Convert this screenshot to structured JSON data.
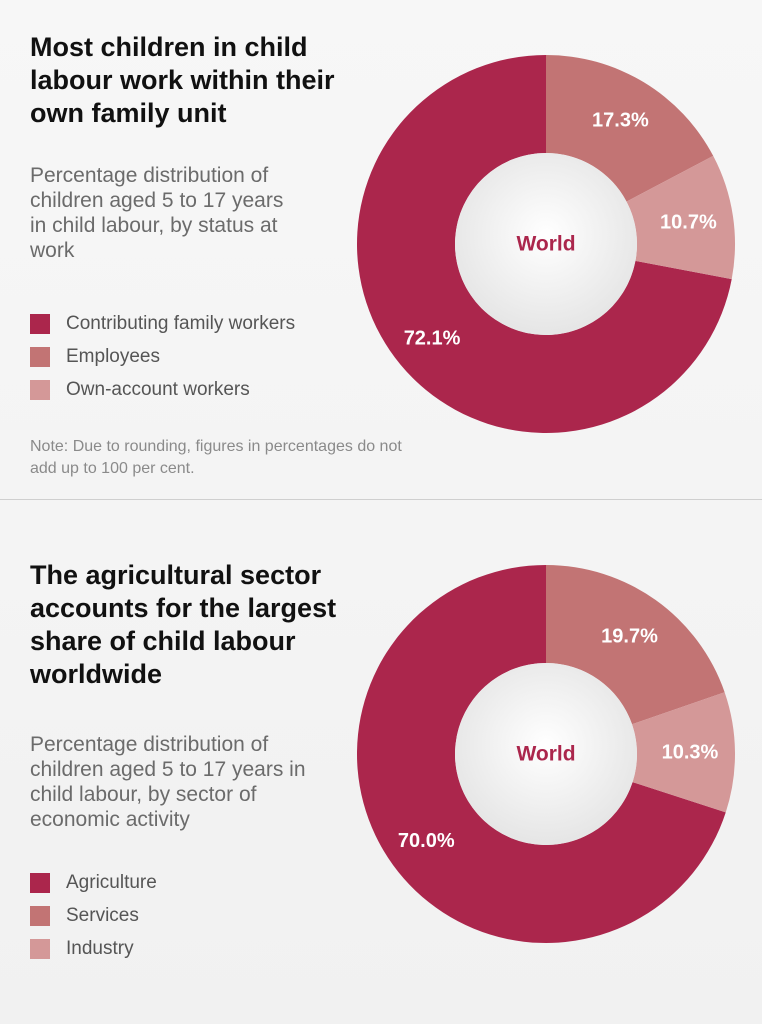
{
  "colors": {
    "primary": "#ab264c",
    "secondary": "#c27474",
    "tertiary": "#d49898"
  },
  "chart_data": [
    {
      "type": "pie",
      "title": "Most children in child labour work within their own family unit",
      "subtitle": "Percentage distribution of children aged 5 to 17 years in child labour, by status at work",
      "center_label": "World",
      "categories": [
        "Contributing family workers",
        "Employees",
        "Own-account workers"
      ],
      "values": [
        72.1,
        17.3,
        10.7
      ],
      "value_labels": [
        "72.1%",
        "17.3%",
        "10.7%"
      ],
      "colors": [
        "#ab264c",
        "#c27474",
        "#d49898"
      ],
      "note": "Note: Due to rounding, figures in percentages do not add up to 100 per cent."
    },
    {
      "type": "pie",
      "title": "The agricultural sector accounts for the largest share of child labour worldwide",
      "subtitle": "Percentage distribution of children aged 5 to 17 years in child labour, by sector of economic activity",
      "center_label": "World",
      "categories": [
        "Agriculture",
        "Services",
        "Industry"
      ],
      "values": [
        70.0,
        19.7,
        10.3
      ],
      "value_labels": [
        "70.0%",
        "19.7%",
        "10.3%"
      ],
      "colors": [
        "#ab264c",
        "#c27474",
        "#d49898"
      ]
    }
  ]
}
